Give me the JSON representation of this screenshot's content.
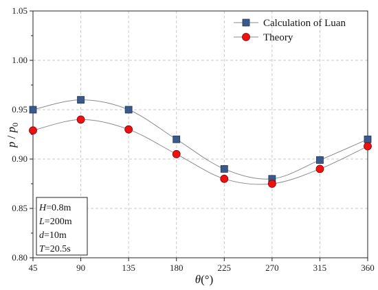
{
  "chart_data": {
    "type": "line",
    "x": [
      45,
      90,
      135,
      180,
      225,
      270,
      315,
      360
    ],
    "xticks": [
      "45",
      "90",
      "135",
      "180",
      "225",
      "270",
      "315",
      "360"
    ],
    "yticks": [
      "0.80",
      "0.85",
      "0.90",
      "0.95",
      "1.00",
      "1.05"
    ],
    "xlim": [
      45,
      360
    ],
    "ylim": [
      0.8,
      1.05
    ],
    "xlabel": {
      "var": "θ",
      "unit": "(°)"
    },
    "ylabel": {
      "p": "p",
      "slash": " / ",
      "p0": "p",
      "sub": "0"
    },
    "grid": true,
    "legend_position": "top-right",
    "series": [
      {
        "name": "Calculation of Luan",
        "marker": "square",
        "color": "#3a5a8c",
        "values": [
          0.95,
          0.96,
          0.95,
          0.92,
          0.89,
          0.88,
          0.899,
          0.92
        ]
      },
      {
        "name": "Theory",
        "marker": "circle",
        "color": "#ee1111",
        "values": [
          0.929,
          0.94,
          0.93,
          0.905,
          0.88,
          0.875,
          0.89,
          0.913
        ]
      }
    ],
    "parameters": [
      {
        "sym": "H",
        "val": "=0.8m"
      },
      {
        "sym": "L",
        "val": "=200m"
      },
      {
        "sym": "d",
        "val": "=10m"
      },
      {
        "sym": "T",
        "val": "=20.5s"
      }
    ]
  }
}
